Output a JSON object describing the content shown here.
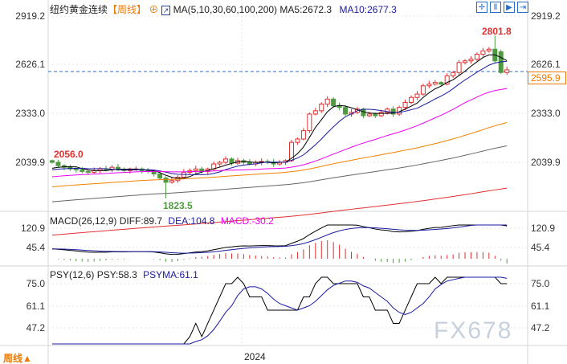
{
  "header": {
    "symbol": "纽约黄金连续",
    "period": "【周线】",
    "ma_label": "MA(5,10,30,60,100,200)",
    "ma5": "MA5:2672.3",
    "ma10": "MA10:2677.3"
  },
  "toolbar": [
    "zoom-in-icon",
    "cursor-left-icon",
    "cursor-right-icon",
    "jump-end-icon"
  ],
  "price_axis": [
    "2919.2",
    "2626.1",
    "2333.0",
    "2039.9"
  ],
  "current_price": "2595.9",
  "annotations": {
    "high": "2801.8",
    "left": "2056.0",
    "low": "1823.5"
  },
  "macd": {
    "label": "MACD(26,12,9)",
    "diff": "DIFF:89.7",
    "dea": "DEA:104.8",
    "macd": "MACD:-30.2",
    "axis": [
      "120.9",
      "45.4"
    ]
  },
  "psy": {
    "label": "PSY(12,6)",
    "psy": "PSY:58.3",
    "psyma": "PSYMA:61.1",
    "axis": [
      "75.0",
      "61.1",
      "47.2"
    ]
  },
  "footer": {
    "period": "周线",
    "arrow": "▲",
    "year": "2024"
  },
  "watermark": "FX678",
  "colors": {
    "up": "#e03030",
    "down": "#4f9a40",
    "ma5": "#000000",
    "ma10": "#1a1aa0",
    "ma30": "#ee00ee",
    "ma60": "#f08000",
    "ma100": "#666666",
    "ma200": "#e03030",
    "accent": "#f07800"
  },
  "chart_data": {
    "type": "candlestick",
    "title": "纽约黄金连续 周线",
    "ylim": [
      1823.5,
      2919.2
    ],
    "closes": [
      2040,
      2020,
      2010,
      2000,
      1995,
      1985,
      1980,
      1990,
      2000,
      1995,
      2010,
      1995,
      1990,
      2000,
      2000,
      1990,
      1985,
      1970,
      1945,
      1920,
      1930,
      1950,
      1980,
      1990,
      2000,
      1985,
      2000,
      2030,
      2040,
      2060,
      2035,
      2050,
      2040,
      2030,
      2040,
      2045,
      2040,
      2030,
      2040,
      2050,
      2160,
      2180,
      2230,
      2330,
      2350,
      2390,
      2420,
      2380,
      2370,
      2330,
      2340,
      2360,
      2320,
      2330,
      2320,
      2340,
      2360,
      2330,
      2370,
      2400,
      2430,
      2450,
      2500,
      2510,
      2520,
      2510,
      2560,
      2580,
      2640,
      2650,
      2660,
      2690,
      2710,
      2720,
      2650,
      2580,
      2596
    ],
    "high": 2801.8,
    "low": 1823.5,
    "last": 2595.9
  }
}
